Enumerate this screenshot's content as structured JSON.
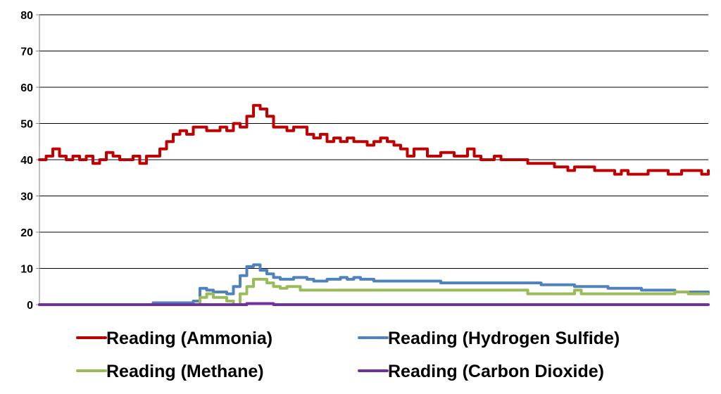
{
  "chart_data": {
    "type": "line",
    "title": "",
    "xlabel": "",
    "ylabel": "",
    "ylim": [
      0,
      80
    ],
    "yticks": [
      0,
      10,
      20,
      30,
      40,
      50,
      60,
      70,
      80
    ],
    "xlim": [
      0,
      100
    ],
    "grid": "horizontal",
    "legend_position": "bottom",
    "series": [
      {
        "name": "Reading (Ammonia)",
        "color": "#c00000",
        "x": [
          0,
          1,
          2,
          3,
          4,
          5,
          6,
          7,
          8,
          9,
          10,
          11,
          12,
          13,
          14,
          15,
          16,
          17,
          18,
          19,
          20,
          21,
          22,
          23,
          24,
          25,
          26,
          27,
          28,
          29,
          30,
          31,
          32,
          33,
          34,
          35,
          36,
          37,
          38,
          39,
          40,
          41,
          42,
          43,
          44,
          45,
          46,
          47,
          48,
          49,
          50,
          51,
          52,
          53,
          54,
          55,
          56,
          57,
          58,
          59,
          60,
          61,
          62,
          63,
          64,
          65,
          66,
          67,
          68,
          69,
          70,
          71,
          72,
          73,
          74,
          75,
          76,
          77,
          78,
          79,
          80,
          81,
          82,
          83,
          84,
          85,
          86,
          87,
          88,
          89,
          90,
          91,
          92,
          93,
          94,
          95,
          96,
          97,
          98,
          99,
          100
        ],
        "values": [
          40,
          41,
          43,
          41,
          40,
          41,
          40,
          41,
          39,
          40,
          42,
          41,
          40,
          40,
          41,
          39,
          41,
          41,
          43,
          45,
          47,
          48,
          47,
          49,
          49,
          48,
          48,
          49,
          48,
          50,
          49,
          52,
          55,
          54,
          52,
          49,
          49,
          48,
          49,
          49,
          47,
          46,
          47,
          45,
          46,
          45,
          46,
          45,
          45,
          44,
          45,
          46,
          45,
          44,
          43,
          41,
          43,
          43,
          41,
          41,
          42,
          42,
          41,
          41,
          43,
          41,
          40,
          40,
          41,
          40,
          40,
          40,
          40,
          39,
          39,
          39,
          39,
          38,
          38,
          37,
          38,
          38,
          38,
          37,
          37,
          37,
          36,
          37,
          36,
          36,
          36,
          37,
          37,
          37,
          36,
          36,
          37,
          37,
          37,
          36,
          37
        ]
      },
      {
        "name": "Reading (Hydrogen Sulfide)",
        "color": "#4f81bd",
        "x": [
          0,
          16,
          17,
          18,
          19,
          20,
          21,
          22,
          23,
          24,
          25,
          26,
          27,
          28,
          29,
          30,
          31,
          32,
          33,
          34,
          35,
          36,
          37,
          38,
          39,
          40,
          41,
          42,
          43,
          44,
          45,
          46,
          47,
          48,
          49,
          50,
          55,
          60,
          65,
          70,
          75,
          80,
          85,
          90,
          95,
          100
        ],
        "values": [
          0,
          0,
          0.5,
          0.5,
          0.5,
          0.5,
          0.5,
          0.5,
          1,
          4.5,
          4,
          3.5,
          3.5,
          3,
          5,
          8,
          10.5,
          11,
          9.5,
          8.5,
          7.5,
          7,
          7,
          7.5,
          7.5,
          7,
          6.5,
          6.5,
          7,
          7,
          7.5,
          7,
          7.5,
          7,
          7,
          6.5,
          6.5,
          6,
          6,
          6,
          5.5,
          5,
          4.5,
          4,
          3.5,
          3
        ]
      },
      {
        "name": "Reading (Methane)",
        "color": "#9bbb59",
        "x": [
          0,
          23,
          24,
          25,
          26,
          27,
          28,
          29,
          30,
          31,
          32,
          33,
          34,
          35,
          36,
          37,
          38,
          39,
          40,
          41,
          50,
          60,
          72,
          73,
          80,
          81,
          85,
          90,
          95,
          97,
          100
        ],
        "values": [
          0,
          0,
          2,
          3,
          2,
          2,
          1,
          0,
          3,
          5,
          7,
          7,
          6,
          5,
          4.5,
          5,
          5,
          4,
          4,
          4,
          4,
          4,
          4,
          3,
          4,
          3,
          3,
          3,
          3.5,
          3,
          3
        ]
      },
      {
        "name": "Reading (Carbon Dioxide)",
        "color": "#7030a0",
        "x": [
          0,
          30,
          31,
          32,
          33,
          34,
          35,
          100
        ],
        "values": [
          0,
          0,
          0.3,
          0.3,
          0.3,
          0.3,
          0,
          0
        ]
      }
    ]
  }
}
